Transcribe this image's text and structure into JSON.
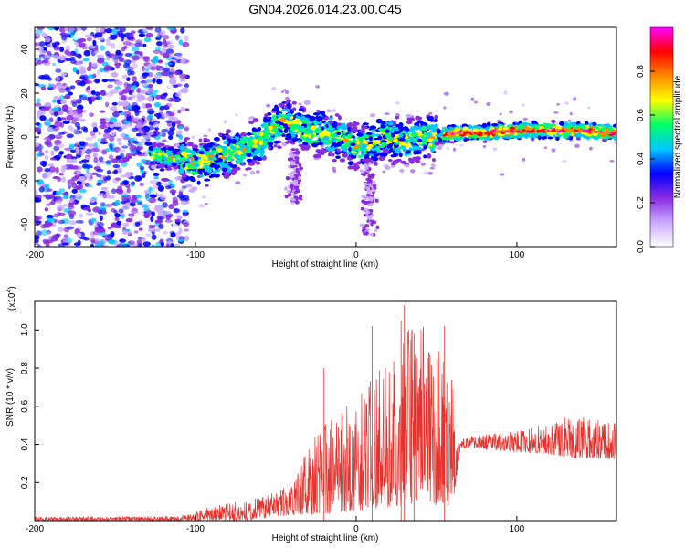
{
  "figure_title": "GN04.2026.014.23.00.C45",
  "chart_data": [
    {
      "type": "heatmap",
      "title": "GN04.2026.014.23.00.C45",
      "xlabel": "Height of straight line (km)",
      "ylabel": "Frequency (Hz)",
      "xlim": [
        -200,
        162
      ],
      "ylim": [
        -50,
        50
      ],
      "xticks": [
        -200,
        -100,
        0,
        100
      ],
      "xtick_labels": [
        "-200",
        "-100",
        "0",
        "100"
      ],
      "yticks": [
        -40,
        -20,
        0,
        20,
        40
      ],
      "ytick_labels": [
        "-40",
        "-20",
        "0",
        "20",
        "40"
      ],
      "colorbar": {
        "label": "Normalized spectral amplitude",
        "range": [
          0,
          1
        ],
        "ticks": [
          0.0,
          0.2,
          0.4,
          0.6,
          0.8
        ],
        "tick_labels": [
          "0.0",
          "0.2",
          "0.4",
          "0.6",
          "0.8"
        ],
        "colors": [
          "#ffffff",
          "#c9a8ff",
          "#8a2be2",
          "#0000ff",
          "#00c8ff",
          "#00ff66",
          "#ffff00",
          "#ff8800",
          "#ff0000",
          "#ff00ff"
        ]
      },
      "ridge": {
        "x": [
          -125,
          -110,
          -100,
          -90,
          -80,
          -70,
          -60,
          -50,
          -45,
          -40,
          -30,
          -20,
          -10,
          0,
          5,
          10,
          20,
          30,
          40,
          50,
          60,
          80,
          100,
          120,
          140,
          162
        ],
        "y": [
          -8,
          -10,
          -12,
          -10,
          -8,
          -5,
          -2,
          5,
          8,
          6,
          3,
          2,
          0,
          -5,
          -3,
          -2,
          0,
          -3,
          0,
          0,
          2,
          2,
          3,
          3,
          3,
          2
        ]
      }
    },
    {
      "type": "line",
      "xlabel": "Height of straight line (km)",
      "ylabel": "SNR (10 * v/v)",
      "exponent_label": "(x10",
      "exponent_power": "4",
      "exponent_close": ")",
      "xlim": [
        -200,
        162
      ],
      "ylim": [
        0,
        11500
      ],
      "xticks": [
        -200,
        -100,
        0,
        100
      ],
      "xtick_labels": [
        "-200",
        "-100",
        "0",
        "100"
      ],
      "yticks": [
        2000,
        4000,
        6000,
        8000,
        10000
      ],
      "ytick_labels": [
        "0.2",
        "0.4",
        "0.6",
        "0.8",
        "1.0"
      ],
      "series": [
        {
          "name": "SNR",
          "color": "#e8312d",
          "envelope": {
            "x": [
              -200,
              -150,
              -110,
              -100,
              -90,
              -75,
              -60,
              -50,
              -40,
              -35,
              -30,
              -20,
              -10,
              0,
              10,
              20,
              30,
              35,
              40,
              50,
              55,
              60,
              62,
              65,
              70,
              100,
              120,
              130,
              162
            ],
            "lo": [
              0,
              0,
              0,
              0,
              0,
              0,
              100,
              200,
              300,
              300,
              300,
              300,
              400,
              500,
              600,
              700,
              800,
              900,
              1000,
              800,
              800,
              800,
              2000,
              3800,
              3800,
              3600,
              3500,
              3300,
              3200
            ],
            "hi": [
              200,
              200,
              250,
              400,
              800,
              1000,
              1200,
              1500,
              2000,
              3000,
              4000,
              5000,
              6000,
              6500,
              7500,
              8500,
              9500,
              11500,
              10500,
              9000,
              8800,
              8000,
              4500,
              4300,
              4400,
              4700,
              5200,
              5500,
              5300
            ]
          },
          "spikes": [
            {
              "x": -20,
              "y": 8000
            },
            {
              "x": 10,
              "y": 10200
            },
            {
              "x": 28,
              "y": 10500
            },
            {
              "x": 30,
              "y": 11300
            },
            {
              "x": 36,
              "y": 9800
            },
            {
              "x": 55,
              "y": 10200
            }
          ]
        }
      ]
    }
  ]
}
